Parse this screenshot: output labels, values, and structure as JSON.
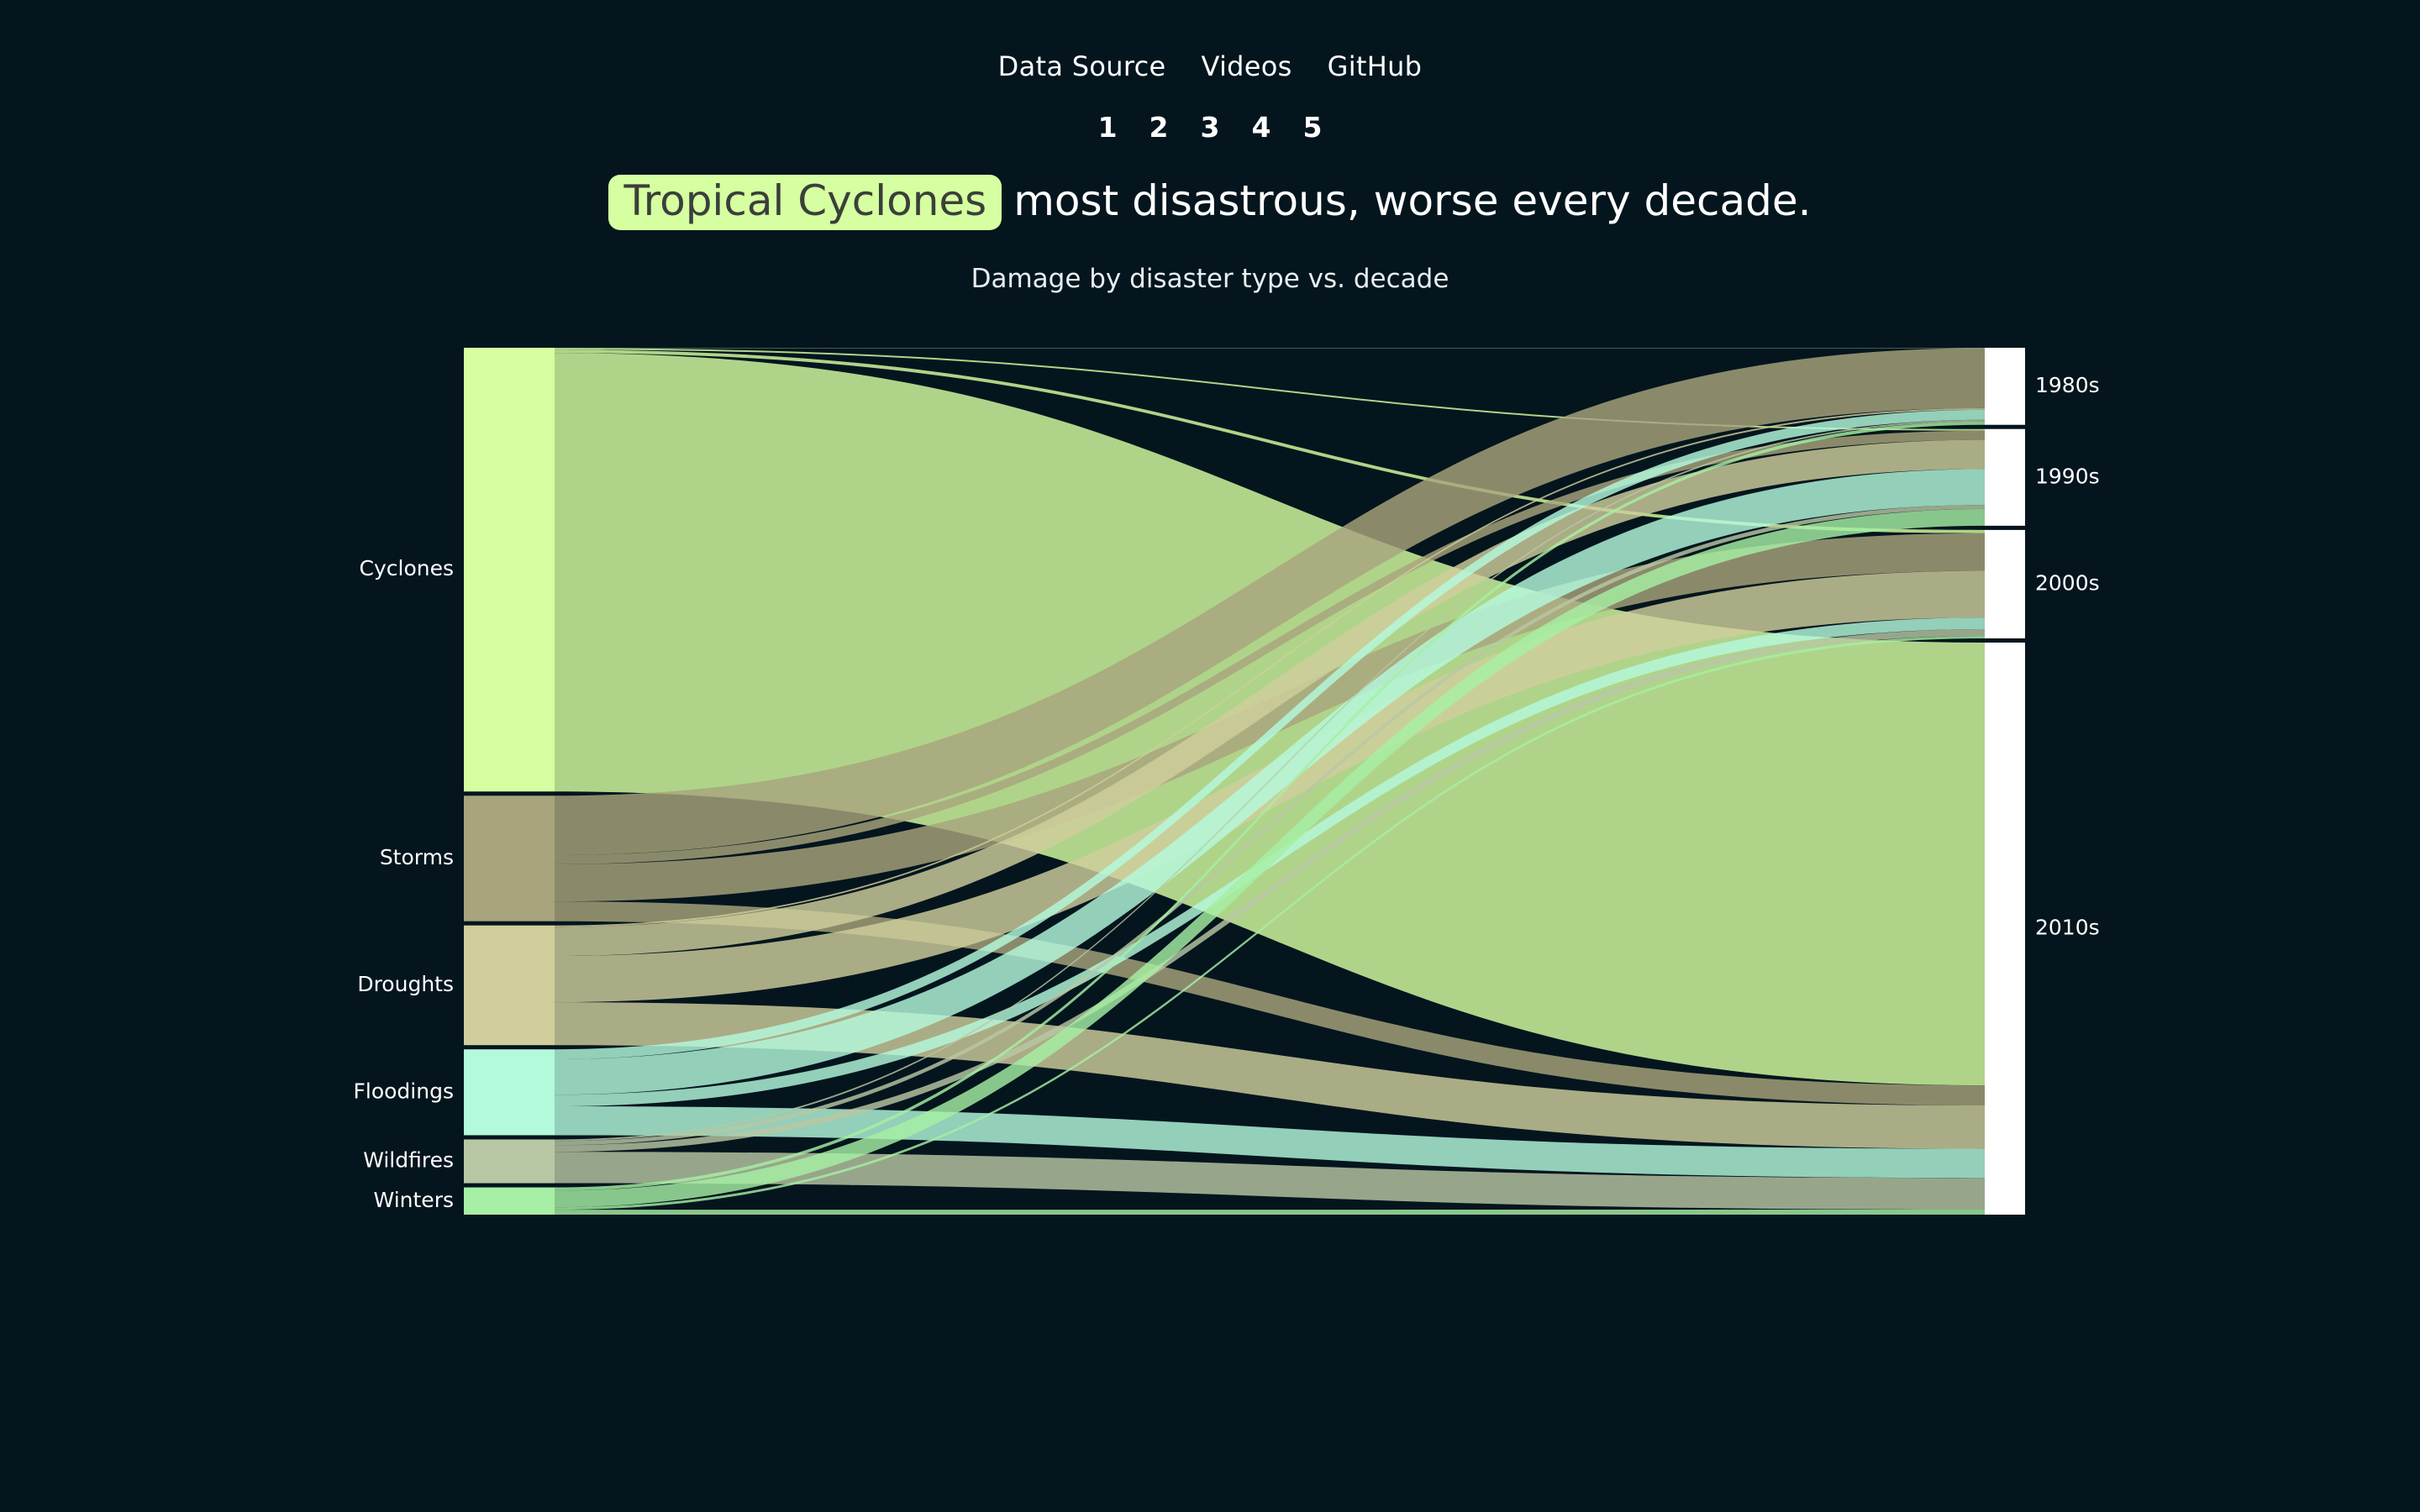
{
  "nav": {
    "links": [
      "Data Source",
      "Videos",
      "GitHub"
    ],
    "pages": [
      "1",
      "2",
      "3",
      "4",
      "5"
    ]
  },
  "headline": {
    "highlight": "Tropical Cyclones",
    "rest": "most disastrous, worse every decade."
  },
  "subtitle": "Damage by disaster type vs. decade",
  "colors": {
    "background": "#04151e",
    "highlight": "#d6ffa1",
    "target_node": "#ffffff"
  },
  "chart_data": {
    "type": "sankey",
    "title": "Damage by disaster type vs. decade",
    "sources": [
      {
        "name": "Cyclones",
        "color": "#d6ffa1"
      },
      {
        "name": "Storms",
        "color": "#a8a57c"
      },
      {
        "name": "Droughts",
        "color": "#cfce9c"
      },
      {
        "name": "Floodings",
        "color": "#b3f9dc"
      },
      {
        "name": "Wildfires",
        "color": "#b8c7a3"
      },
      {
        "name": "Winters",
        "color": "#a6efa4"
      }
    ],
    "targets": [
      "1980s",
      "1990s",
      "2000s",
      "2010s"
    ],
    "flows": [
      {
        "source": "Cyclones",
        "target": "1980s",
        "value": 0.4
      },
      {
        "source": "Cyclones",
        "target": "1990s",
        "value": 2
      },
      {
        "source": "Cyclones",
        "target": "2000s",
        "value": 4
      },
      {
        "source": "Cyclones",
        "target": "2010s",
        "value": 531
      },
      {
        "source": "Storms",
        "target": "1980s",
        "value": 72
      },
      {
        "source": "Storms",
        "target": "1990s",
        "value": 11
      },
      {
        "source": "Storms",
        "target": "2000s",
        "value": 45
      },
      {
        "source": "Storms",
        "target": "2010s",
        "value": 24
      },
      {
        "source": "Droughts",
        "target": "1980s",
        "value": 2
      },
      {
        "source": "Droughts",
        "target": "1990s",
        "value": 35
      },
      {
        "source": "Droughts",
        "target": "2000s",
        "value": 56
      },
      {
        "source": "Droughts",
        "target": "2010s",
        "value": 52
      },
      {
        "source": "Floodings",
        "target": "1980s",
        "value": 12
      },
      {
        "source": "Floodings",
        "target": "1990s",
        "value": 43
      },
      {
        "source": "Floodings",
        "target": "2000s",
        "value": 14
      },
      {
        "source": "Floodings",
        "target": "2010s",
        "value": 35
      },
      {
        "source": "Wildfires",
        "target": "1980s",
        "value": 2
      },
      {
        "source": "Wildfires",
        "target": "1990s",
        "value": 5
      },
      {
        "source": "Wildfires",
        "target": "2000s",
        "value": 8
      },
      {
        "source": "Wildfires",
        "target": "2010s",
        "value": 38
      },
      {
        "source": "Winters",
        "target": "1980s",
        "value": 4
      },
      {
        "source": "Winters",
        "target": "1990s",
        "value": 20
      },
      {
        "source": "Winters",
        "target": "2000s",
        "value": 3
      },
      {
        "source": "Winters",
        "target": "2010s",
        "value": 6
      }
    ]
  }
}
